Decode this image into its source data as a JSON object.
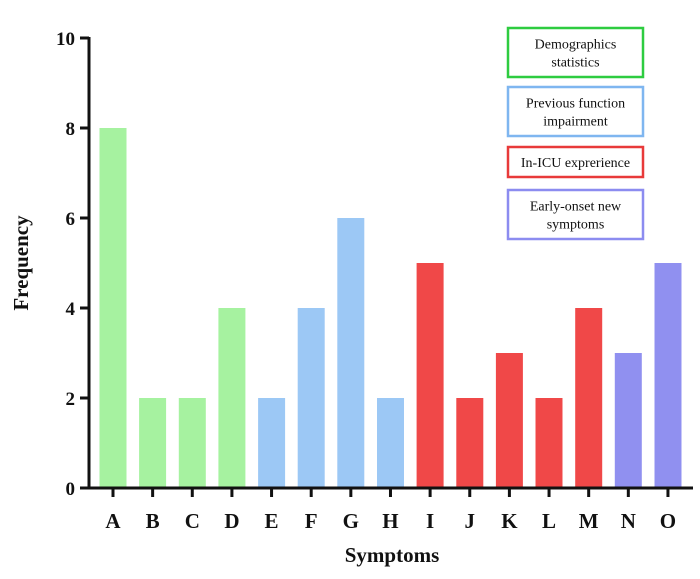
{
  "chart_data": {
    "type": "bar",
    "categories": [
      "A",
      "B",
      "C",
      "D",
      "E",
      "F",
      "G",
      "H",
      "I",
      "J",
      "K",
      "L",
      "M",
      "N",
      "O"
    ],
    "values": [
      8,
      2,
      2,
      4,
      2,
      4,
      6,
      2,
      5,
      2,
      3,
      2,
      4,
      3,
      5
    ],
    "groups": [
      "Demographics statistics",
      "Demographics statistics",
      "Demographics statistics",
      "Demographics statistics",
      "Previous function impairment",
      "Previous function impairment",
      "Previous function impairment",
      "Previous function impairment",
      "In-ICU exprerience",
      "In-ICU exprerience",
      "In-ICU exprerience",
      "In-ICU exprerience",
      "In-ICU exprerience",
      "Early-onset new symptoms",
      "Early-onset new symptoms"
    ],
    "xlabel": "Symptoms",
    "ylabel": "Frequency",
    "ylim": [
      0,
      10
    ],
    "yticks": [
      "0",
      "2",
      "4",
      "6",
      "8",
      "10"
    ],
    "grid": false,
    "legend_position": "top-right",
    "legend": [
      {
        "lines": [
          "Demographics",
          "statistics"
        ],
        "fill": "#a6f2a0",
        "border": "#2ecc40"
      },
      {
        "lines": [
          "Previous function",
          "impairment"
        ],
        "fill": "#9cc8f5",
        "border": "#7fb6f0"
      },
      {
        "lines": [
          "In-ICU exprerience"
        ],
        "fill": "#f04848",
        "border": "#e83a3a"
      },
      {
        "lines": [
          "Early-onset new",
          "symptoms"
        ],
        "fill": "#9090f0",
        "border": "#8c8cf0"
      }
    ],
    "colors": {
      "Demographics statistics": "#a6f2a0",
      "Previous function impairment": "#9cc8f5",
      "In-ICU exprerience": "#f04848",
      "Early-onset new symptoms": "#9090f0"
    }
  }
}
